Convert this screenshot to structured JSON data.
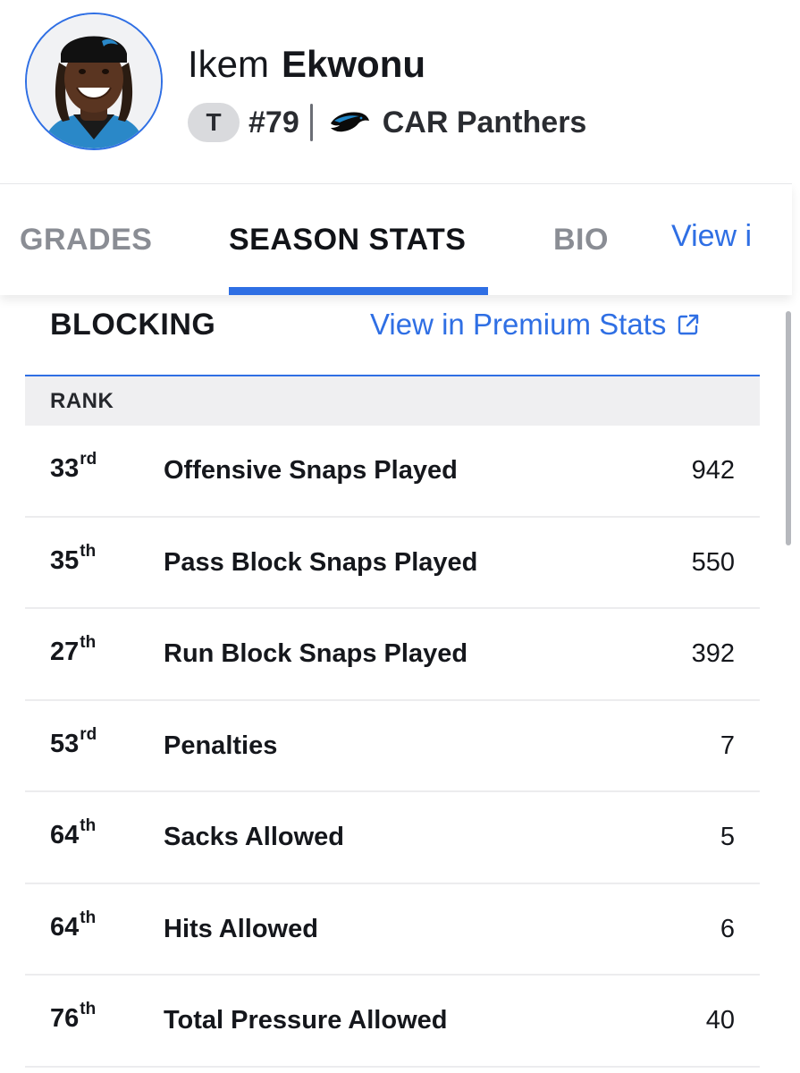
{
  "player": {
    "first_name": "Ikem",
    "last_name": "Ekwonu",
    "position": "T",
    "jersey": "#79",
    "team": "CAR Panthers",
    "team_logo_icon": "panther-logo-icon",
    "accent_color": "#2f6fe4"
  },
  "tabs": [
    {
      "label": "GRADES",
      "active": false
    },
    {
      "label": "SEASON STATS",
      "active": true
    },
    {
      "label": "BIO",
      "active": false
    },
    {
      "label": "View i",
      "active": false
    }
  ],
  "section": {
    "title": "BLOCKING",
    "premium_link": "View in Premium Stats",
    "rank_header": "RANK"
  },
  "stats": [
    {
      "rank": "33",
      "suffix": "rd",
      "label": "Offensive Snaps Played",
      "value": "942"
    },
    {
      "rank": "35",
      "suffix": "th",
      "label": "Pass Block Snaps Played",
      "value": "550"
    },
    {
      "rank": "27",
      "suffix": "th",
      "label": "Run Block Snaps Played",
      "value": "392"
    },
    {
      "rank": "53",
      "suffix": "rd",
      "label": "Penalties",
      "value": "7"
    },
    {
      "rank": "64",
      "suffix": "th",
      "label": "Sacks Allowed",
      "value": "5"
    },
    {
      "rank": "64",
      "suffix": "th",
      "label": "Hits Allowed",
      "value": "6"
    },
    {
      "rank": "76",
      "suffix": "th",
      "label": "Total Pressure Allowed",
      "value": "40"
    }
  ]
}
